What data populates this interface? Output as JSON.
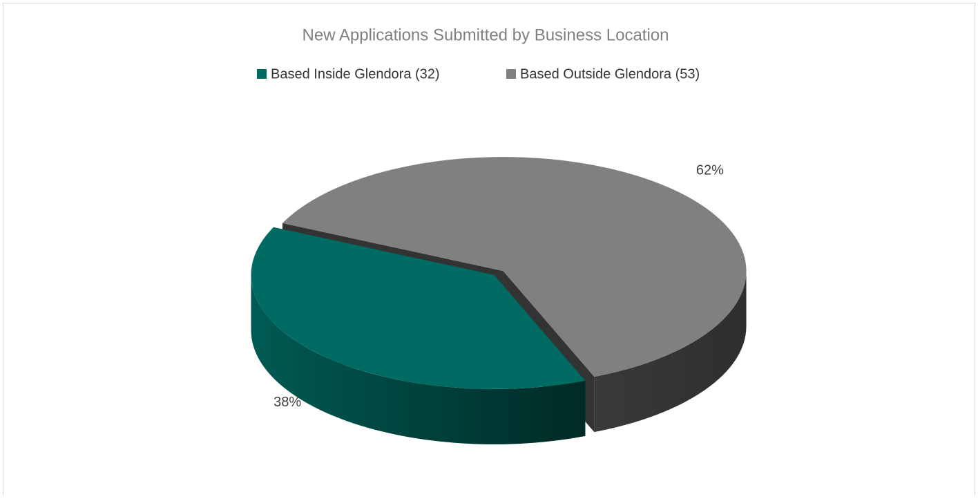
{
  "chart_data": {
    "type": "pie3d",
    "title": "New Applications Submitted by Business Location",
    "categories": [
      "Based Inside Glendora (32)",
      "Based Outside Glendora (53)"
    ],
    "values": [
      38,
      62
    ],
    "value_labels": [
      "38%",
      "62%"
    ],
    "colors": [
      "#006b63",
      "#808080"
    ],
    "legend": "top"
  }
}
